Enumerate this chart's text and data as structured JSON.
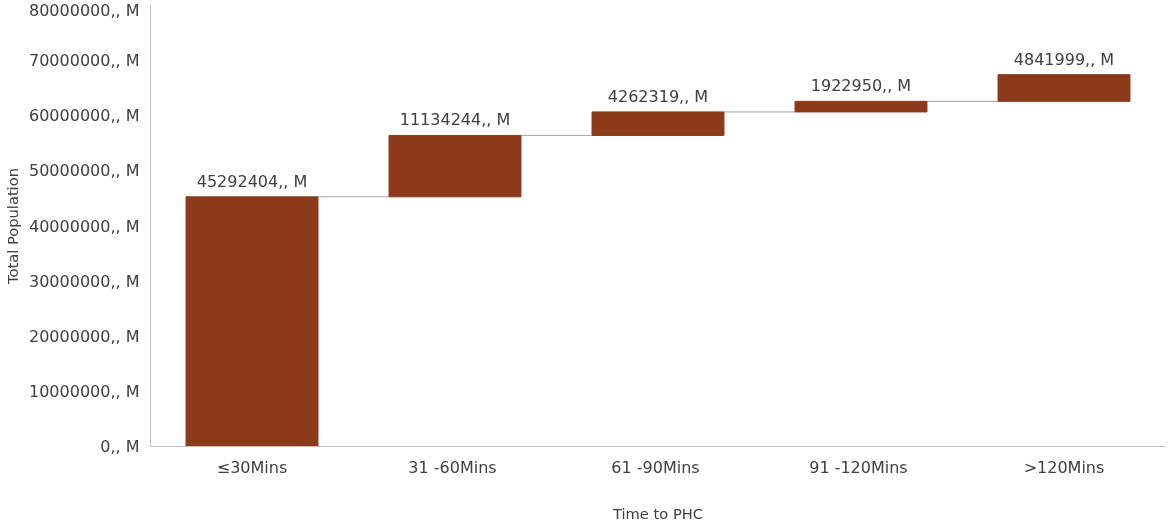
{
  "chart_data": {
    "type": "bar",
    "xlabel": "Time to PHC",
    "ylabel": "Total Population",
    "categories": [
      "≤30Mins",
      "31  -60Mins",
      "61  -90Mins",
      "91  -120Mins",
      ">120Mins"
    ],
    "values": [
      45292404,
      11134244,
      4262319,
      1922950,
      4841999
    ],
    "base": [
      0,
      45292404,
      56426648,
      60688967,
      62611917
    ],
    "value_labels": [
      "45292404,, M",
      "11134244,, M",
      "4262319,, M",
      "1922950,, M",
      "4841999,, M"
    ],
    "color": "#8b3a1a",
    "ylim": [
      0,
      80000000
    ],
    "yticks": [
      {
        "value": 0,
        "label": "0,, M"
      },
      {
        "value": 10000000,
        "label": "10000000,, M"
      },
      {
        "value": 20000000,
        "label": "20000000,, M"
      },
      {
        "value": 30000000,
        "label": "30000000,, M"
      },
      {
        "value": 40000000,
        "label": "40000000,, M"
      },
      {
        "value": 50000000,
        "label": "50000000,, M"
      },
      {
        "value": 60000000,
        "label": "60000000,, M"
      },
      {
        "value": 70000000,
        "label": "70000000,, M"
      },
      {
        "value": 80000000,
        "label": "80000000,, M"
      }
    ],
    "grid": false
  }
}
